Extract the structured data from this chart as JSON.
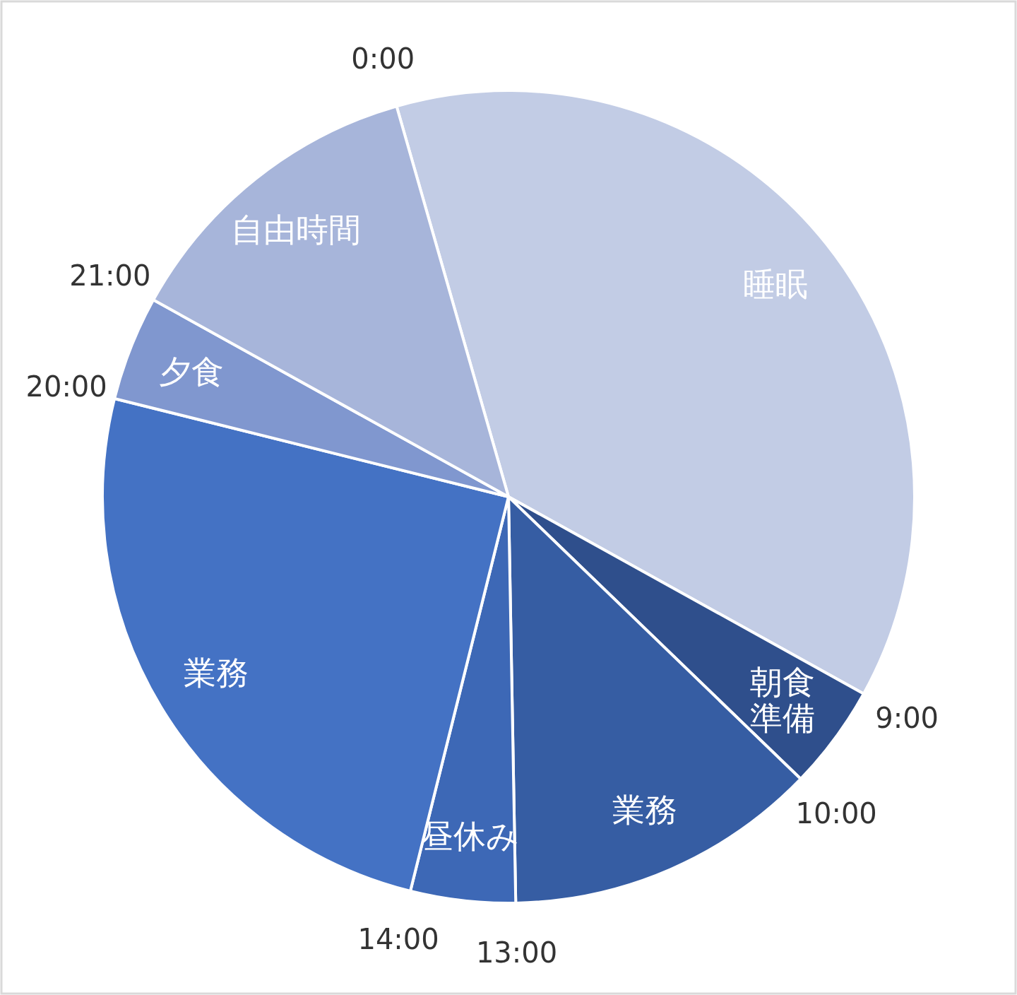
{
  "chart_data": {
    "type": "pie",
    "categories": [
      "睡眠",
      "朝食準備",
      "業務",
      "昼休み",
      "業務",
      "夕食",
      "自由時間"
    ],
    "values": [
      37.5,
      4.16,
      12.5,
      4.17,
      25,
      4.17,
      12.5
    ],
    "colors": [
      "#c2cce5",
      "#2f4f8c",
      "#365da3",
      "#3d68b6",
      "#4472c4",
      "#8097cf",
      "#a7b5da"
    ],
    "annotations": [
      "0:00",
      "9:00",
      "10:00",
      "13:00",
      "14:00",
      "20:00",
      "21:00"
    ]
  }
}
